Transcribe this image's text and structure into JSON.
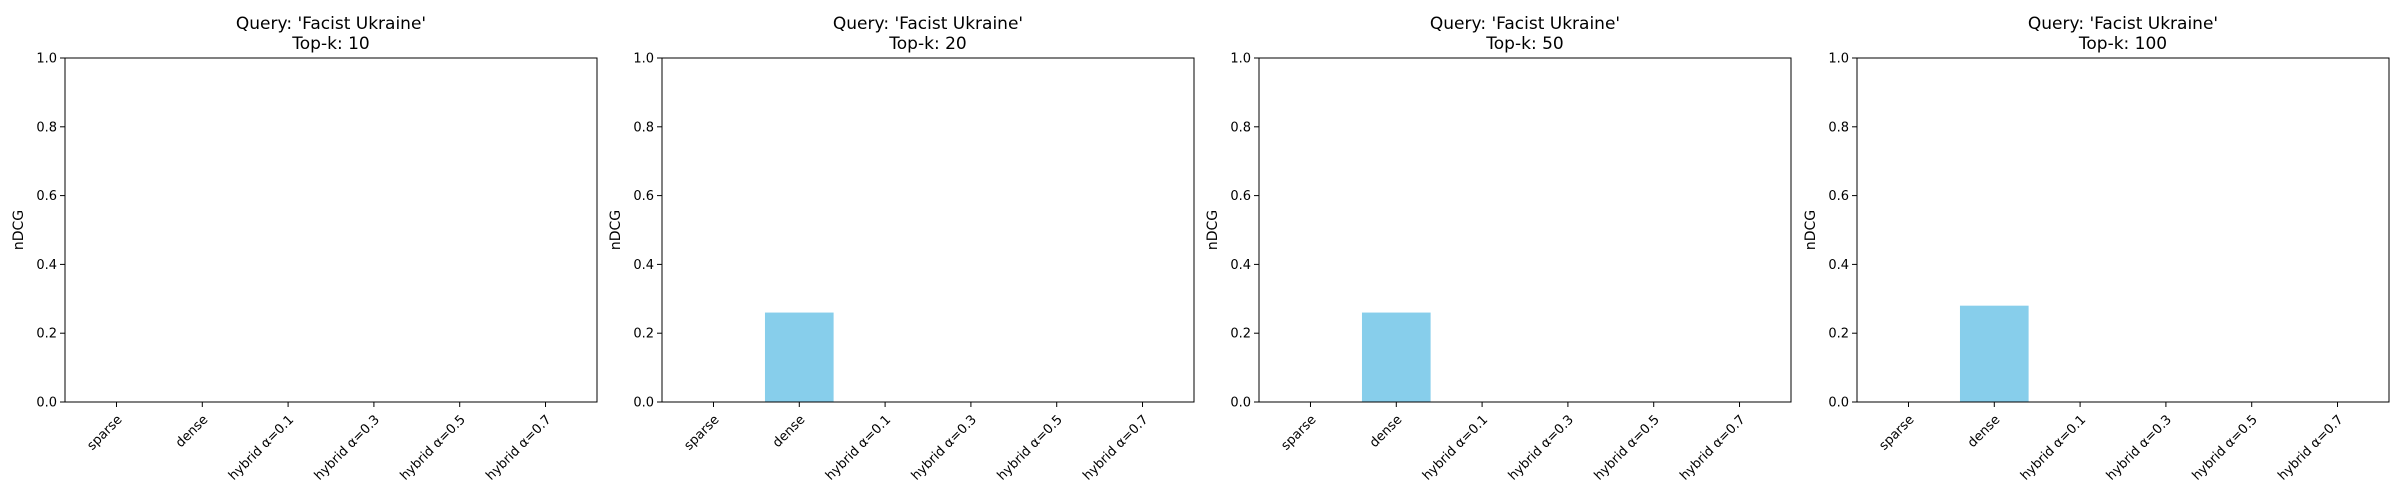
{
  "chart_data": [
    {
      "type": "bar",
      "title_line1": "Query: 'Facist Ukraine'",
      "title_line2": "Top-k: 10",
      "ylabel": "nDCG",
      "ylim": [
        0,
        1
      ],
      "yticks": [
        "0.0",
        "0.2",
        "0.4",
        "0.6",
        "0.8",
        "1.0"
      ],
      "categories": [
        "sparse",
        "dense",
        "hybrid α=0.1",
        "hybrid α=0.3",
        "hybrid α=0.5",
        "hybrid α=0.7"
      ],
      "values": [
        0,
        0,
        0,
        0,
        0,
        0
      ],
      "bar_color": "#87CEEB"
    },
    {
      "type": "bar",
      "title_line1": "Query: 'Facist Ukraine'",
      "title_line2": "Top-k: 20",
      "ylabel": "nDCG",
      "ylim": [
        0,
        1
      ],
      "yticks": [
        "0.0",
        "0.2",
        "0.4",
        "0.6",
        "0.8",
        "1.0"
      ],
      "categories": [
        "sparse",
        "dense",
        "hybrid α=0.1",
        "hybrid α=0.3",
        "hybrid α=0.5",
        "hybrid α=0.7"
      ],
      "values": [
        0,
        0.26,
        0,
        0,
        0,
        0
      ],
      "bar_color": "#87CEEB"
    },
    {
      "type": "bar",
      "title_line1": "Query: 'Facist Ukraine'",
      "title_line2": "Top-k: 50",
      "ylabel": "nDCG",
      "ylim": [
        0,
        1
      ],
      "yticks": [
        "0.0",
        "0.2",
        "0.4",
        "0.6",
        "0.8",
        "1.0"
      ],
      "categories": [
        "sparse",
        "dense",
        "hybrid α=0.1",
        "hybrid α=0.3",
        "hybrid α=0.5",
        "hybrid α=0.7"
      ],
      "values": [
        0,
        0.26,
        0,
        0,
        0,
        0
      ],
      "bar_color": "#87CEEB"
    },
    {
      "type": "bar",
      "title_line1": "Query: 'Facist Ukraine'",
      "title_line2": "Top-k: 100",
      "ylabel": "nDCG",
      "ylim": [
        0,
        1
      ],
      "yticks": [
        "0.0",
        "0.2",
        "0.4",
        "0.6",
        "0.8",
        "1.0"
      ],
      "categories": [
        "sparse",
        "dense",
        "hybrid α=0.1",
        "hybrid α=0.3",
        "hybrid α=0.5",
        "hybrid α=0.7"
      ],
      "values": [
        0,
        0.28,
        0,
        0,
        0,
        0
      ],
      "bar_color": "#87CEEB"
    }
  ]
}
